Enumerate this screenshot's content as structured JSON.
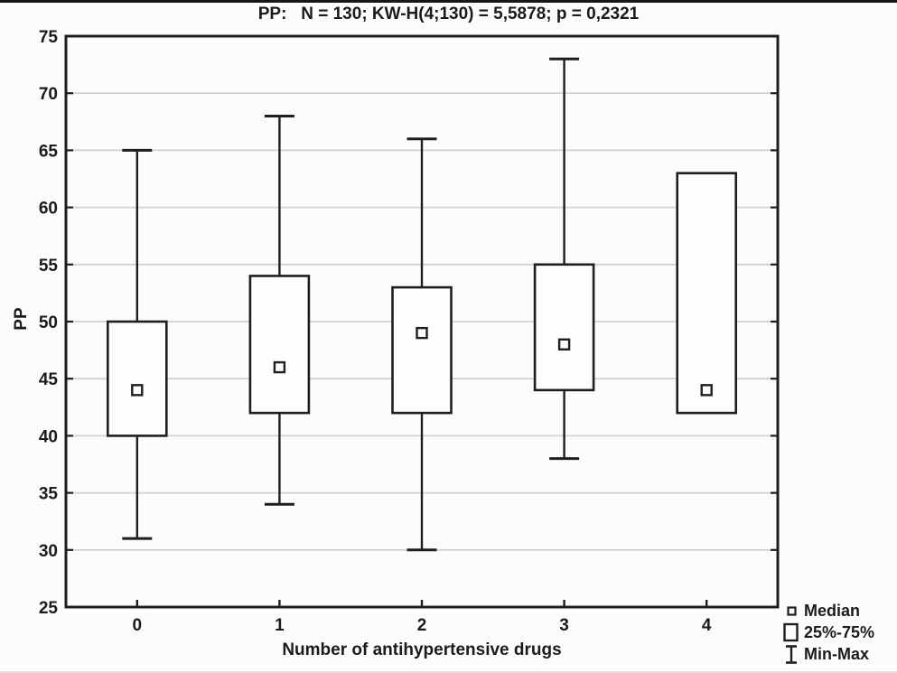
{
  "colors": {
    "line": "#1e1e1e",
    "grid": "#d2d2d2",
    "background": "#fcfcfc",
    "box_fill": "#fdfdfd"
  },
  "chart_data": {
    "type": "box",
    "title": "PP:   N = 130; KW-H(4;130) = 5,5878; p = 0,2321",
    "xlabel": "Number of antihypertensive drugs",
    "ylabel": "PP",
    "ylim": [
      25,
      75
    ],
    "yticks": [
      25,
      30,
      35,
      40,
      45,
      50,
      55,
      60,
      65,
      70,
      75
    ],
    "grid": "horizontal",
    "categories": [
      "0",
      "1",
      "2",
      "3",
      "4"
    ],
    "series": [
      {
        "category": "0",
        "min": 31,
        "q1": 40,
        "median": 44,
        "q3": 50,
        "max": 65
      },
      {
        "category": "1",
        "min": 34,
        "q1": 42,
        "median": 46,
        "q3": 54,
        "max": 68
      },
      {
        "category": "2",
        "min": 30,
        "q1": 42,
        "median": 49,
        "q3": 53,
        "max": 66
      },
      {
        "category": "3",
        "min": 38,
        "q1": 44,
        "median": 48,
        "q3": 55,
        "max": 73
      },
      {
        "category": "4",
        "min": 42,
        "q1": 42,
        "median": 44,
        "q3": 63,
        "max": 63
      }
    ],
    "legend": {
      "position": "bottom-right",
      "items": [
        {
          "icon": "median-square-icon",
          "label": "Median"
        },
        {
          "icon": "iqr-box-icon",
          "label": "25%-75%"
        },
        {
          "icon": "min-max-whisker-icon",
          "label": "Min-Max"
        }
      ]
    }
  }
}
